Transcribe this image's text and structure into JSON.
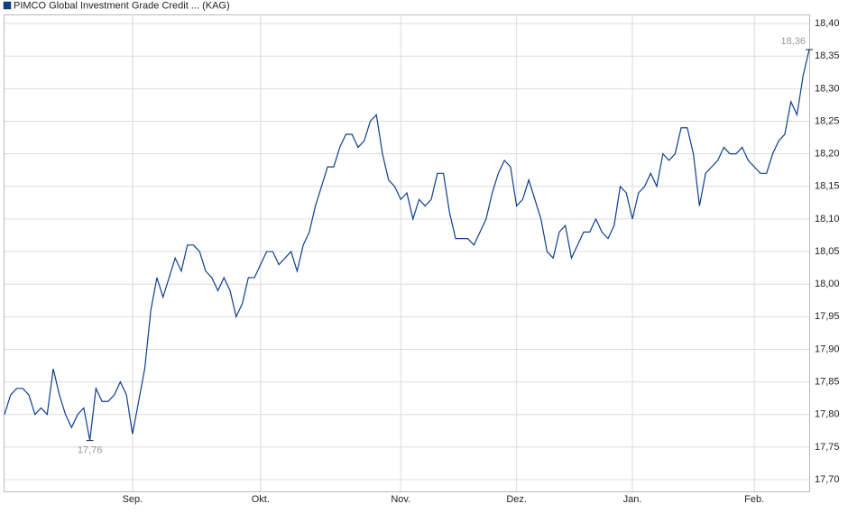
{
  "chart_data": {
    "type": "line",
    "categories": [
      null,
      null,
      null,
      null,
      null,
      null,
      null,
      null,
      null,
      null,
      null,
      null,
      null,
      null,
      null,
      null,
      null,
      null,
      null,
      null,
      null,
      "Sep.",
      null,
      null,
      null,
      null,
      null,
      null,
      null,
      null,
      null,
      null,
      null,
      null,
      null,
      null,
      null,
      null,
      null,
      null,
      null,
      null,
      "Okt.",
      null,
      null,
      null,
      null,
      null,
      null,
      null,
      null,
      null,
      null,
      null,
      null,
      null,
      null,
      null,
      null,
      null,
      null,
      null,
      null,
      null,
      null,
      "Nov.",
      null,
      null,
      null,
      null,
      null,
      null,
      null,
      null,
      null,
      null,
      null,
      null,
      null,
      null,
      null,
      null,
      null,
      null,
      "Dez.",
      null,
      null,
      null,
      null,
      null,
      null,
      null,
      null,
      null,
      null,
      null,
      null,
      null,
      null,
      null,
      null,
      null,
      null,
      "Jan.",
      null,
      null,
      null,
      null,
      null,
      null,
      null,
      null,
      null,
      null,
      null,
      null,
      null,
      null,
      null,
      null,
      null,
      null,
      null,
      "Feb.",
      null,
      null,
      null,
      null,
      null,
      null,
      null,
      null,
      null
    ],
    "series": [
      {
        "name": "PIMCO Global Investment Grade Credit ... (KAG)",
        "color": "#0d3f8f",
        "values": [
          17.8,
          17.83,
          17.84,
          17.84,
          17.83,
          17.8,
          17.81,
          17.8,
          17.87,
          17.83,
          17.8,
          17.78,
          17.8,
          17.81,
          17.76,
          17.84,
          17.82,
          17.82,
          17.83,
          17.85,
          17.83,
          17.77,
          17.82,
          17.87,
          17.96,
          18.01,
          17.98,
          18.01,
          18.04,
          18.02,
          18.06,
          18.06,
          18.05,
          18.02,
          18.01,
          17.99,
          18.01,
          17.99,
          17.95,
          17.97,
          18.01,
          18.01,
          18.03,
          18.05,
          18.05,
          18.03,
          18.04,
          18.05,
          18.02,
          18.06,
          18.08,
          18.12,
          18.15,
          18.18,
          18.18,
          18.21,
          18.23,
          18.23,
          18.21,
          18.22,
          18.25,
          18.26,
          18.2,
          18.16,
          18.15,
          18.13,
          18.14,
          18.1,
          18.13,
          18.12,
          18.13,
          18.17,
          18.17,
          18.11,
          18.07,
          18.07,
          18.07,
          18.06,
          18.08,
          18.1,
          18.14,
          18.17,
          18.19,
          18.18,
          18.12,
          18.13,
          18.16,
          18.13,
          18.1,
          18.05,
          18.04,
          18.08,
          18.09,
          18.04,
          18.06,
          18.08,
          18.08,
          18.1,
          18.08,
          18.07,
          18.09,
          18.15,
          18.14,
          18.1,
          18.14,
          18.15,
          18.17,
          18.15,
          18.2,
          18.19,
          18.2,
          18.24,
          18.24,
          18.2,
          18.12,
          18.17,
          18.18,
          18.19,
          18.21,
          18.2,
          18.2,
          18.21,
          18.19,
          18.18,
          18.17,
          18.17,
          18.2,
          18.22,
          18.23,
          18.28,
          18.26,
          18.32,
          18.36
        ],
        "value_labels": [
          null,
          null,
          null,
          null,
          null,
          null,
          null,
          null,
          null,
          null,
          null,
          null,
          null,
          null,
          "17,76",
          null,
          null,
          null,
          null,
          null,
          null,
          null,
          null,
          null,
          null,
          null,
          null,
          null,
          null,
          null,
          null,
          null,
          null,
          null,
          null,
          null,
          null,
          null,
          null,
          null,
          null,
          null,
          null,
          null,
          null,
          null,
          null,
          null,
          null,
          null,
          null,
          null,
          null,
          null,
          null,
          null,
          null,
          null,
          null,
          null,
          null,
          null,
          null,
          null,
          null,
          null,
          null,
          null,
          null,
          null,
          null,
          null,
          null,
          null,
          null,
          null,
          null,
          null,
          null,
          null,
          null,
          null,
          null,
          null,
          null,
          null,
          null,
          null,
          null,
          null,
          null,
          null,
          null,
          null,
          null,
          null,
          null,
          null,
          null,
          null,
          null,
          null,
          null,
          null,
          null,
          null,
          null,
          null,
          null,
          null,
          null,
          null,
          null,
          null,
          null,
          null,
          null,
          null,
          null,
          null,
          null,
          null,
          null,
          null,
          null,
          null,
          null,
          null,
          null,
          null,
          null,
          null,
          "18,36"
        ]
      }
    ],
    "ylim": [
      17.682,
      18.414
    ],
    "yticks": [
      {
        "value": 17.7,
        "label": "17,70"
      },
      {
        "value": 17.75,
        "label": "17,75"
      },
      {
        "value": 17.8,
        "label": "17,80"
      },
      {
        "value": 17.85,
        "label": "17,85"
      },
      {
        "value": 17.9,
        "label": "17,90"
      },
      {
        "value": 17.95,
        "label": "17,95"
      },
      {
        "value": 18.0,
        "label": "18,00"
      },
      {
        "value": 18.05,
        "label": "18,05"
      },
      {
        "value": 18.1,
        "label": "18,10"
      },
      {
        "value": 18.15,
        "label": "18,15"
      },
      {
        "value": 18.2,
        "label": "18,20"
      },
      {
        "value": 18.25,
        "label": "18,25"
      },
      {
        "value": 18.3,
        "label": "18,30"
      },
      {
        "value": 18.35,
        "label": "18,35"
      },
      {
        "value": 18.4,
        "label": "18,40"
      }
    ],
    "grid": true
  }
}
